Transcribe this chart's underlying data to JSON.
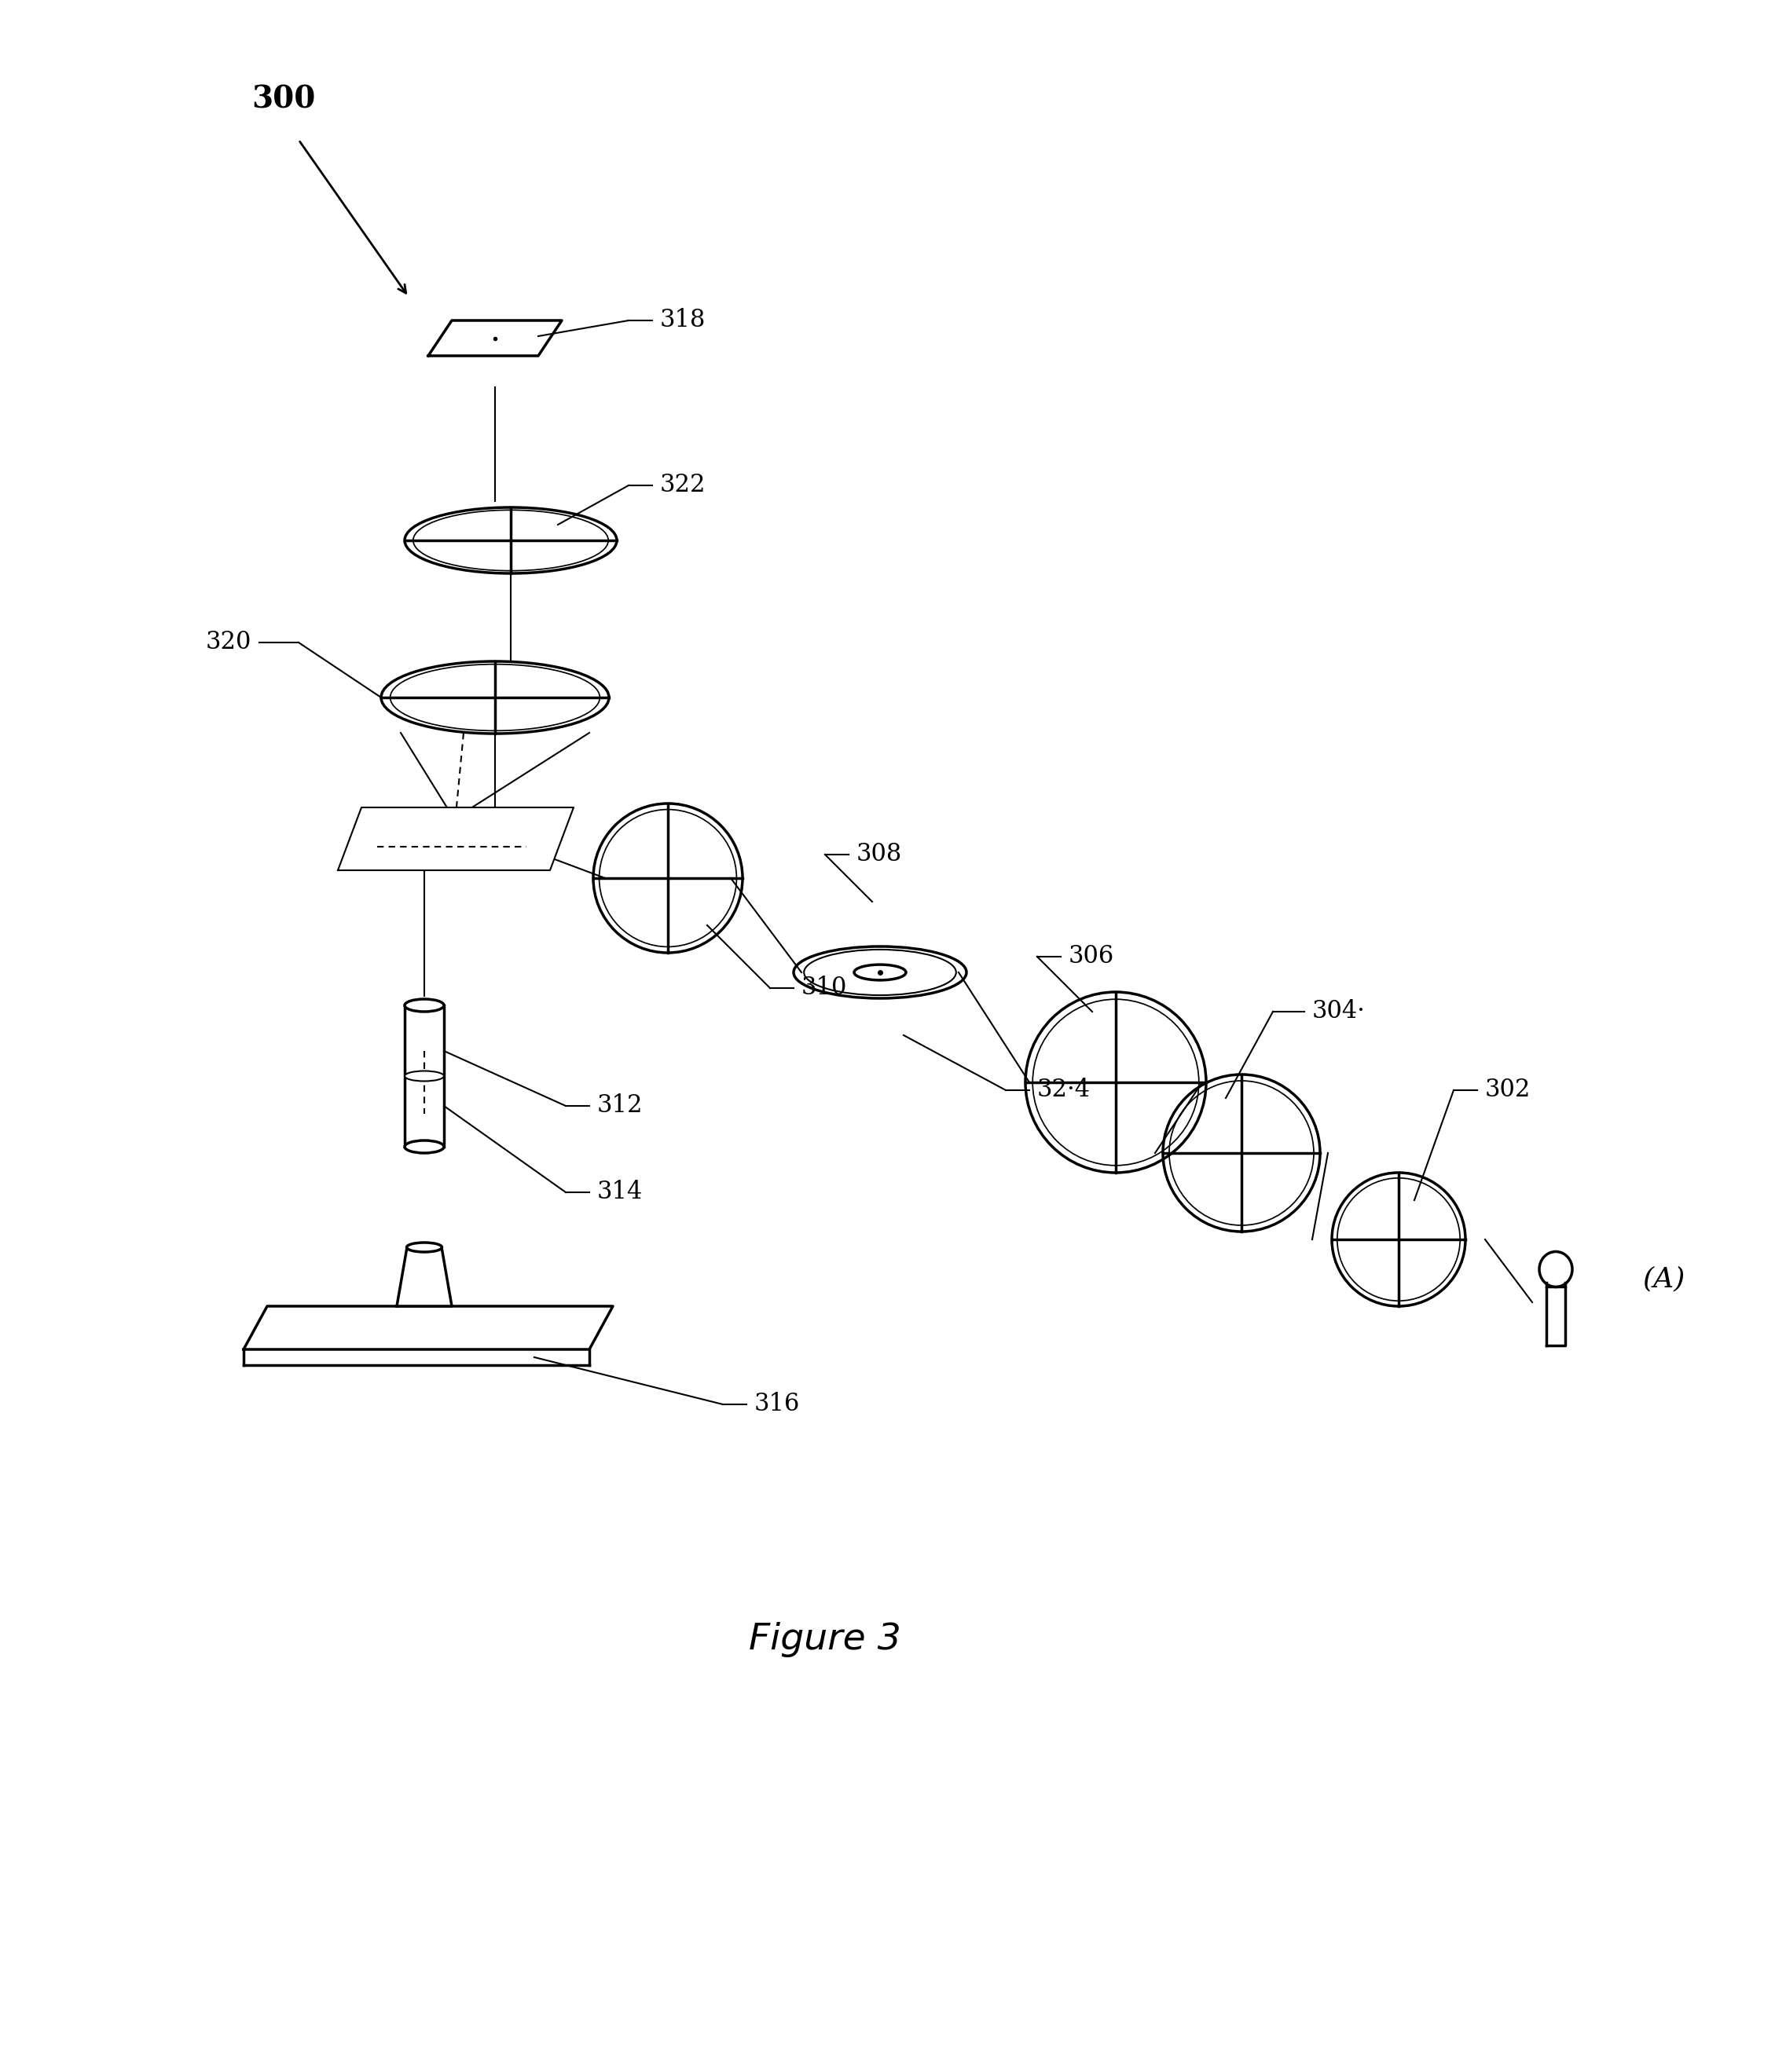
{
  "title": "Figure 3",
  "labels": {
    "300": "300",
    "302": "302",
    "304": "304·",
    "306": "306",
    "308": "308",
    "310": "310",
    "312": "312",
    "314": "314",
    "316": "316",
    "318": "318",
    "320": "320",
    "322": "322",
    "324": "32·4",
    "A": "(A)"
  },
  "bg_color": "#ffffff",
  "line_color": "#000000",
  "lw": 2.5,
  "tlw": 1.5
}
